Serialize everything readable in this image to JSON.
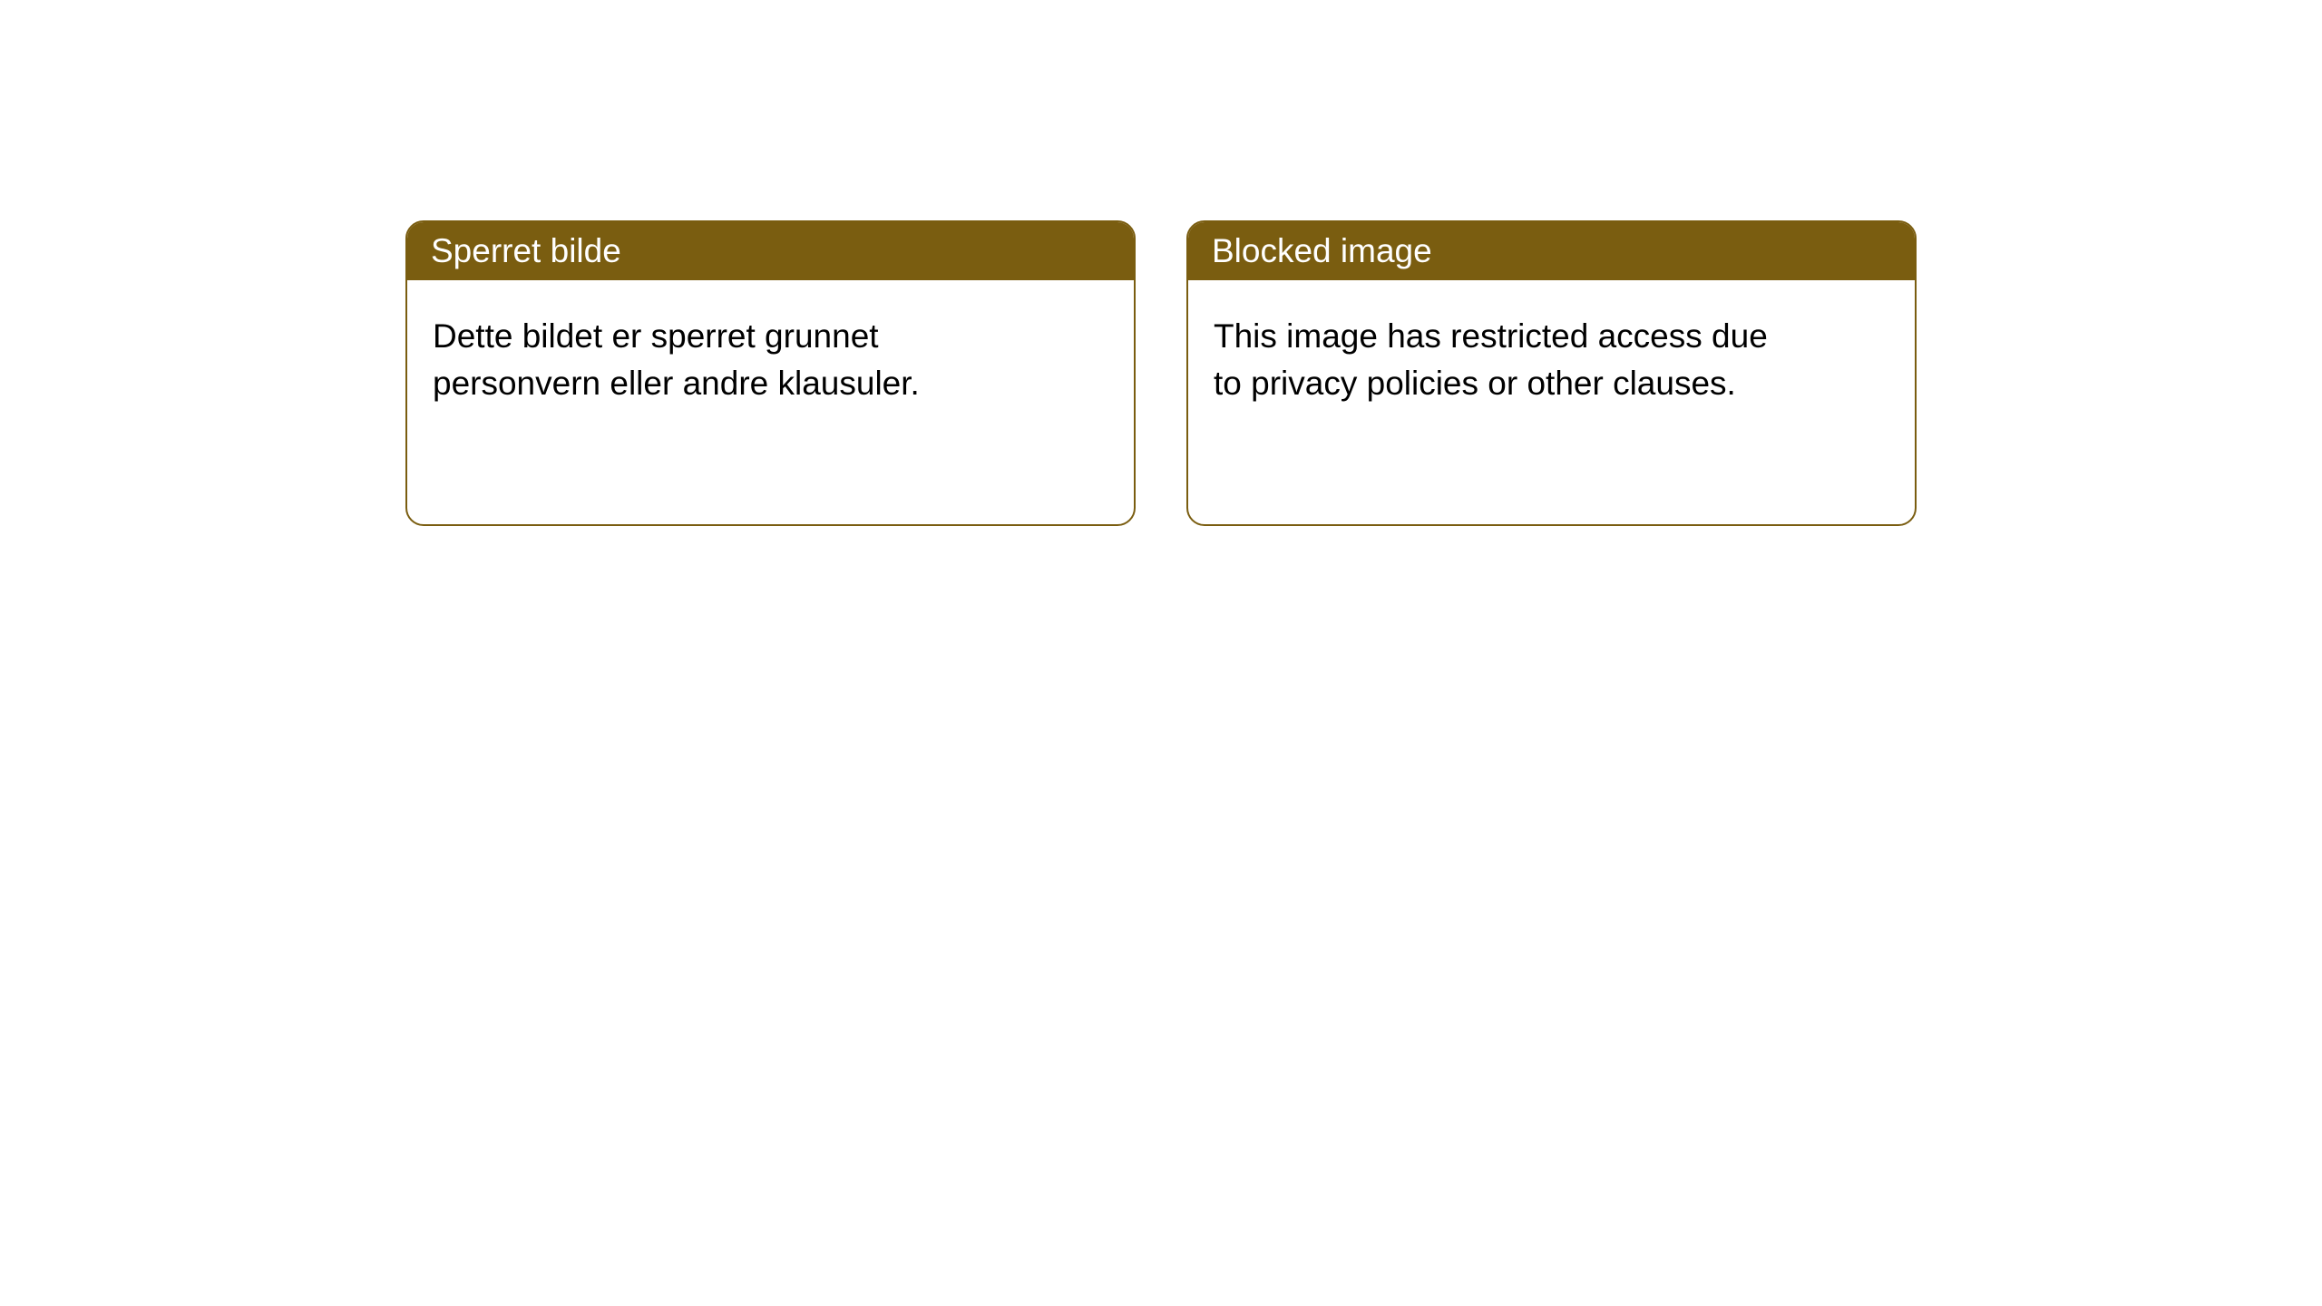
{
  "cards": [
    {
      "title": "Sperret bilde",
      "body": "Dette bildet er sperret grunnet personvern eller andre klausuler."
    },
    {
      "title": "Blocked image",
      "body": "This image has restricted access due to privacy policies or other clauses."
    }
  ],
  "style": {
    "header_bg": "#7a5d10",
    "header_text": "#ffffff",
    "border_color": "#7a5d10",
    "body_bg": "#ffffff",
    "body_text": "#000000",
    "border_radius": 20,
    "title_fontsize": 37,
    "body_fontsize": 37
  }
}
